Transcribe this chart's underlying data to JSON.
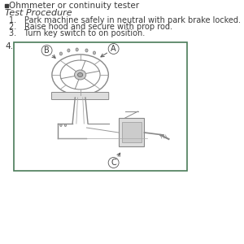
{
  "background_color": "#ffffff",
  "text_color": "#3a3a3a",
  "green_color": "#4a7c59",
  "bullet_text": "Ohmmeter or continuity tester",
  "section_title": "Test Procedure",
  "steps": [
    "Park machine safely in neutral with park brake locked.",
    "Raise hood and secure with prop rod.",
    "Turn key switch to on position."
  ],
  "step_number": "4.",
  "box_border_color": "#4a7c59",
  "label_A": "A",
  "label_B": "B",
  "label_C": "C",
  "font_size_body": 7.5,
  "font_size_title": 8.0
}
